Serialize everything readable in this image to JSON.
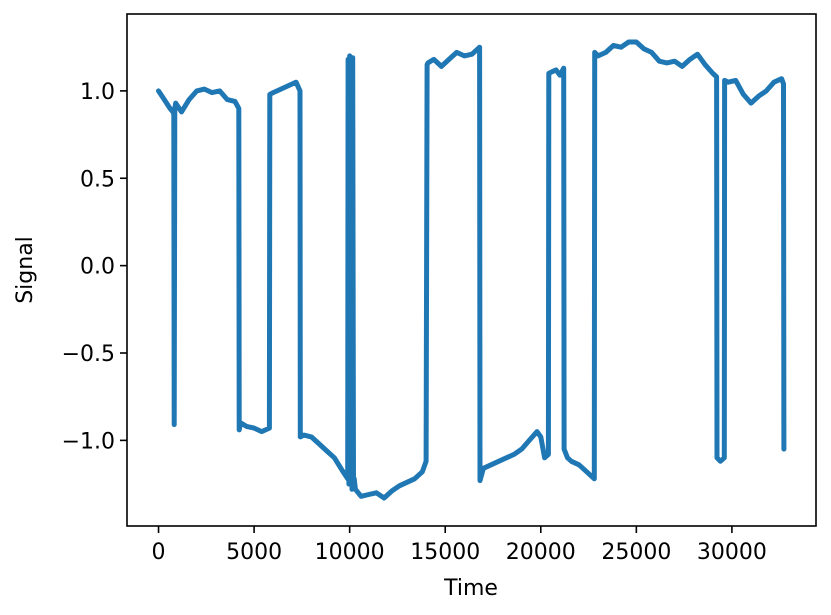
{
  "chart_data": {
    "type": "line",
    "title": "",
    "xlabel": "Time",
    "ylabel": "Signal",
    "xlim": [
      -1650,
      34400
    ],
    "ylim": [
      -1.49,
      1.44
    ],
    "xticks": [
      0,
      5000,
      10000,
      15000,
      20000,
      25000,
      30000
    ],
    "xtick_labels": [
      "0",
      "5000",
      "10000",
      "15000",
      "20000",
      "25000",
      "30000"
    ],
    "yticks": [
      1.0,
      0.5,
      0.0,
      -0.5,
      -1.0
    ],
    "ytick_labels": [
      "1.0",
      "0.5",
      "0.0",
      "−0.5",
      "−1.0"
    ],
    "grid": false,
    "legend": "none",
    "series_color": "#1f77b4",
    "series": [
      {
        "x": [
          0,
          300,
          600,
          750,
          800,
          820,
          850,
          900,
          1200,
          1600,
          2000,
          2400,
          2800,
          3200,
          3600,
          4000,
          4200,
          4220,
          4300,
          4600,
          5000,
          5400,
          5800,
          5820,
          6000,
          6400,
          6800,
          7200,
          7400,
          7420,
          7600,
          8000,
          8400,
          8800,
          9200,
          9600,
          9900,
          9920,
          9960,
          10000,
          10040,
          10080,
          10120,
          10160,
          10200,
          10240,
          10300,
          10600,
          11000,
          11400,
          11800,
          12200,
          12600,
          13000,
          13400,
          13800,
          14000,
          14050,
          14100,
          14400,
          14800,
          15200,
          15600,
          16000,
          16400,
          16800,
          16820,
          17000,
          17400,
          17800,
          18200,
          18600,
          19000,
          19400,
          19800,
          20000,
          20200,
          20400,
          20420,
          20600,
          20800,
          21000,
          21200,
          21220,
          21400,
          21600,
          22000,
          22400,
          22800,
          22820,
          23000,
          23400,
          23800,
          24200,
          24600,
          25000,
          25400,
          25800,
          26200,
          26600,
          27000,
          27400,
          27800,
          28200,
          28600,
          29000,
          29200,
          29220,
          29400,
          29600,
          29620,
          29800,
          30200,
          30600,
          31000,
          31400,
          31800,
          32200,
          32600,
          32700,
          32720
        ],
        "y": [
          1.0,
          0.95,
          0.9,
          0.88,
          0.87,
          -0.91,
          0.9,
          0.93,
          0.88,
          0.95,
          1.0,
          1.01,
          0.99,
          1.0,
          0.95,
          0.94,
          0.9,
          -0.94,
          -0.9,
          -0.92,
          -0.93,
          -0.95,
          -0.93,
          0.98,
          0.99,
          1.01,
          1.03,
          1.05,
          1.0,
          -0.98,
          -0.97,
          -0.98,
          -1.02,
          -1.06,
          -1.1,
          -1.17,
          -1.22,
          1.18,
          -1.25,
          1.2,
          -1.2,
          1.18,
          -1.28,
          1.19,
          -1.27,
          -1.22,
          -1.28,
          -1.32,
          -1.31,
          -1.3,
          -1.33,
          -1.29,
          -1.26,
          -1.24,
          -1.22,
          -1.18,
          -1.12,
          1.15,
          1.16,
          1.18,
          1.14,
          1.18,
          1.22,
          1.2,
          1.21,
          1.25,
          -1.23,
          -1.16,
          -1.14,
          -1.12,
          -1.1,
          -1.08,
          -1.05,
          -1.0,
          -0.95,
          -0.98,
          -1.1,
          -1.08,
          1.1,
          1.11,
          1.12,
          1.09,
          1.13,
          -1.05,
          -1.1,
          -1.12,
          -1.14,
          -1.18,
          -1.22,
          1.22,
          1.2,
          1.22,
          1.26,
          1.25,
          1.28,
          1.28,
          1.24,
          1.22,
          1.17,
          1.16,
          1.17,
          1.14,
          1.18,
          1.21,
          1.15,
          1.1,
          1.08,
          -1.1,
          -1.12,
          -1.1,
          1.06,
          1.05,
          1.06,
          0.98,
          0.93,
          0.97,
          1.0,
          1.05,
          1.07,
          1.04,
          -1.05
        ]
      }
    ]
  }
}
